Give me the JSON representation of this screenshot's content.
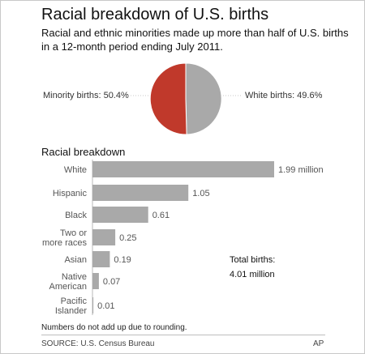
{
  "title": "Racial breakdown of U.S. births",
  "subtitle": "Racial and ethnic minorities made up more than half of U.S. births in a 12-month period ending July 2011.",
  "footnote": "Numbers do not add up due to rounding.",
  "source": "SOURCE: U.S. Census Bureau",
  "credit": "AP",
  "colors": {
    "minority": "#c0392b",
    "white": "#a9a9a9",
    "bar": "#a9a9a9",
    "leader": "#c8c8c8"
  },
  "chart_data": [
    {
      "type": "pie",
      "slices": [
        {
          "name": "Minority births",
          "label": "Minority births: 50.4%",
          "value": 50.4,
          "color": "#c0392b"
        },
        {
          "name": "White births",
          "label": "White births: 49.6%",
          "value": 49.6,
          "color": "#a9a9a9"
        }
      ]
    },
    {
      "type": "bar",
      "orientation": "horizontal",
      "title": "Racial breakdown",
      "categories": [
        "White",
        "Hispanic",
        "Black",
        "Two or more races",
        "Asian",
        "Native American",
        "Pacific Islander"
      ],
      "category_lines": [
        [
          "White"
        ],
        [
          "Hispanic"
        ],
        [
          "Black"
        ],
        [
          "Two or",
          "more races"
        ],
        [
          "Asian"
        ],
        [
          "Native",
          "American"
        ],
        [
          "Pacific",
          "Islander"
        ]
      ],
      "values": [
        1.99,
        1.05,
        0.61,
        0.25,
        0.19,
        0.07,
        0.01
      ],
      "value_labels": [
        "1.99 million",
        "1.05",
        "0.61",
        "0.25",
        "0.19",
        "0.07",
        "0.01"
      ],
      "unit": "million",
      "annotation": {
        "label": "Total births:",
        "value": "4.01 million"
      }
    }
  ]
}
